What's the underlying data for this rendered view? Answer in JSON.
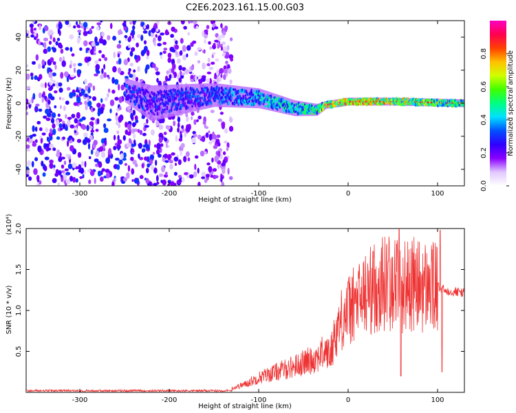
{
  "chart_data": [
    {
      "type": "heatmap",
      "title": "C2E6.2023.161.15.00.G03",
      "xlabel": "Height of straight line (km)",
      "ylabel": "Frequency (Hz)",
      "xlim": [
        -360,
        130
      ],
      "ylim": [
        -50,
        50
      ],
      "xticks": [
        -300,
        -200,
        -100,
        0,
        100
      ],
      "yticks": [
        -40,
        -20,
        0,
        20,
        40
      ],
      "colorbar": {
        "label": "Normalized spectral amplitude",
        "ticks": [
          0.0,
          0.2,
          0.4,
          0.6,
          0.8
        ],
        "range": [
          0,
          1
        ],
        "colors": [
          "#ffffff",
          "#e0c8ff",
          "#8a00ff",
          "#3000ff",
          "#0050ff",
          "#00e0ff",
          "#00ff80",
          "#40ff00",
          "#d0ff00",
          "#ffc000",
          "#ff4000",
          "#ff0050",
          "#ff00c0"
        ]
      },
      "noise_region": {
        "x_from": -360,
        "x_to": -130,
        "amplitude": 0.25
      },
      "signal_band": [
        {
          "x": -250,
          "freq": 8,
          "spread": 6,
          "amplitude": 0.35
        },
        {
          "x": -220,
          "freq": 0,
          "spread": 9,
          "amplitude": 0.3
        },
        {
          "x": -150,
          "freq": 5,
          "spread": 6,
          "amplitude": 0.35
        },
        {
          "x": -100,
          "freq": 3,
          "spread": 5,
          "amplitude": 0.45
        },
        {
          "x": -60,
          "freq": -3,
          "spread": 4,
          "amplitude": 0.5
        },
        {
          "x": -35,
          "freq": -4,
          "spread": 3,
          "amplitude": 0.55
        },
        {
          "x": -25,
          "freq": -1,
          "spread": 2,
          "amplitude": 0.7
        },
        {
          "x": 0,
          "freq": 1,
          "spread": 2,
          "amplitude": 0.8
        },
        {
          "x": 50,
          "freq": 1,
          "spread": 2,
          "amplitude": 0.75
        },
        {
          "x": 130,
          "freq": 0,
          "spread": 2,
          "amplitude": 0.55
        }
      ]
    },
    {
      "type": "line",
      "title": "",
      "xlabel": "Height of straight line (km)",
      "ylabel": "SNR (10 * v/v)",
      "yscale_label": "(x10⁴)",
      "xlim": [
        -360,
        130
      ],
      "ylim": [
        0,
        2.0
      ],
      "xticks": [
        -300,
        -200,
        -100,
        0,
        100
      ],
      "yticks": [
        0.5,
        1.0,
        1.5,
        2.0
      ],
      "ytick_labels": [
        "0.5",
        "1.0",
        "1.5",
        "2.0"
      ],
      "series": [
        {
          "color": "#ee3333",
          "x": [
            -360,
            -300,
            -250,
            -200,
            -160,
            -130,
            -115,
            -100,
            -80,
            -60,
            -40,
            -25,
            -20,
            -15,
            -5,
            5,
            15,
            25,
            35,
            45,
            55,
            60,
            70,
            80,
            90,
            100,
            105,
            110,
            130
          ],
          "y": [
            0.02,
            0.02,
            0.03,
            0.04,
            0.04,
            0.05,
            0.1,
            0.18,
            0.25,
            0.32,
            0.4,
            0.5,
            0.45,
            0.7,
            0.95,
            1.05,
            1.15,
            1.25,
            1.32,
            1.35,
            1.38,
            1.3,
            1.32,
            1.3,
            1.28,
            1.28,
            1.26,
            1.24,
            1.22
          ]
        }
      ],
      "spikes": [
        {
          "x": 57,
          "y": 2.0
        },
        {
          "x": 59,
          "y": 0.2
        },
        {
          "x": 103,
          "y": 1.98
        },
        {
          "x": 105,
          "y": 0.25
        },
        {
          "x": 30,
          "y": 1.5
        },
        {
          "x": 45,
          "y": 1.6
        }
      ]
    }
  ]
}
